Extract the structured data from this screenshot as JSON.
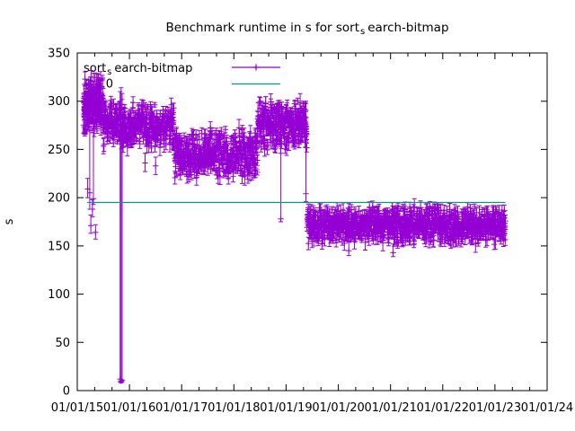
{
  "window": {
    "background": "#ffffff"
  },
  "title": {
    "prefix": "Benchmark runtime in s for sort",
    "subscript": "s",
    "suffix": "earch-bitmap"
  },
  "axes": {
    "ylabel": "s",
    "y_ticks": [
      0,
      50,
      100,
      150,
      200,
      250,
      300,
      350
    ],
    "ylim": [
      0,
      350
    ],
    "x_tick_labels": [
      "01/01/15",
      "01/01/16",
      "01/01/17",
      "01/01/18",
      "01/01/19",
      "01/01/20",
      "01/01/21",
      "01/01/22",
      "01/01/23",
      "01/01/24"
    ],
    "x_tick_years": [
      2015,
      2016,
      2017,
      2018,
      2019,
      2020,
      2021,
      2022,
      2023,
      2024
    ],
    "minor_ticks_per_year": 3
  },
  "legend": {
    "position": "top-left-inside",
    "entries": [
      {
        "label_prefix": "sort",
        "label_subscript": "s",
        "label_suffix": "earch-bitmap",
        "color": "#9400d3",
        "style": "errorbars"
      },
      {
        "label": "4.1.0",
        "color": "#009e73",
        "style": "line"
      }
    ]
  },
  "chart_data": {
    "type": "scatter",
    "title": "Benchmark runtime in s for sort_search-bitmap",
    "xlabel": "",
    "ylabel": "s",
    "ylim": [
      0,
      350
    ],
    "xlim_years": [
      2015,
      2024
    ],
    "grid": false,
    "legend_position": "top-left",
    "seed": 1337,
    "series": [
      {
        "name": "sort_search-bitmap",
        "color": "#9400d3",
        "marker": "plus-with-errorbars",
        "segments": [
          {
            "t_start": 2015.12,
            "t_end": 2015.5,
            "mean": 296,
            "spread": 33,
            "err": 8,
            "step": 0.0018
          },
          {
            "t_start": 2015.5,
            "t_end": 2016.85,
            "mean": 276,
            "spread": 25,
            "err": 8,
            "step": 0.004
          },
          {
            "t_start": 2016.85,
            "t_end": 2018.45,
            "mean": 246,
            "spread": 28,
            "err": 8,
            "step": 0.004
          },
          {
            "t_start": 2018.45,
            "t_end": 2019.4,
            "mean": 276,
            "spread": 28,
            "err": 8,
            "step": 0.0035
          },
          {
            "t_start": 2019.4,
            "t_end": 2023.2,
            "mean": 172,
            "spread": 21,
            "err": 7,
            "step": 0.004
          }
        ],
        "outliers": [
          {
            "t": 2015.2,
            "v": 209,
            "lo": 200,
            "hi": 220
          },
          {
            "t": 2015.24,
            "v": 205,
            "lo": 188,
            "hi": 322
          },
          {
            "t": 2015.26,
            "v": 171,
            "lo": 163,
            "hi": 182
          },
          {
            "t": 2015.29,
            "v": 188,
            "lo": 180,
            "hi": 198
          },
          {
            "t": 2015.31,
            "v": 199,
            "lo": 193,
            "hi": 320
          },
          {
            "t": 2015.35,
            "v": 164,
            "lo": 157,
            "hi": 172
          },
          {
            "t": 2015.82,
            "v": 12,
            "lo": 9,
            "hi": 310
          },
          {
            "t": 2015.84,
            "v": 10,
            "lo": 8,
            "hi": 314
          },
          {
            "t": 2015.86,
            "v": 11,
            "lo": 9,
            "hi": 308
          },
          {
            "t": 2016.3,
            "v": 236,
            "lo": 227,
            "hi": 246
          },
          {
            "t": 2016.5,
            "v": 233,
            "lo": 224,
            "hi": 242
          },
          {
            "t": 2018.9,
            "v": 178,
            "lo": 175,
            "hi": 280
          },
          {
            "t": 2019.38,
            "v": 204,
            "lo": 196,
            "hi": 300
          },
          {
            "t": 2020.2,
            "v": 145,
            "lo": 140,
            "hi": 154
          },
          {
            "t": 2021.05,
            "v": 143,
            "lo": 139,
            "hi": 152
          }
        ]
      },
      {
        "name": "4.1.0",
        "color": "#009e73",
        "style": "horizontal-line",
        "value": 195,
        "t_start": 2015.19,
        "t_end": 2023.2
      }
    ]
  }
}
